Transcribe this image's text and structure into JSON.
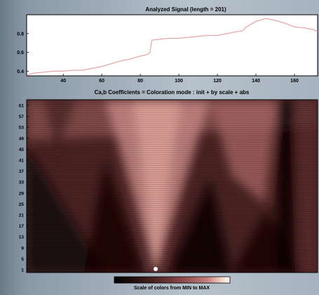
{
  "chart_data": [
    {
      "type": "line",
      "title": "Analyzed Signal  (length = 201)",
      "xlabel": "",
      "ylabel": "",
      "xlim": [
        21,
        172
      ],
      "ylim": [
        0.35,
        1.0
      ],
      "xticks": [
        40,
        60,
        80,
        100,
        120,
        140,
        160
      ],
      "yticks": [
        0.4,
        0.6,
        0.8
      ],
      "ytick_labels": [
        "0.4",
        "0.6",
        "0.8"
      ],
      "series": [
        {
          "color": "#e8a8a8",
          "x": [
            21,
            25,
            30,
            35,
            40,
            45,
            50,
            55,
            60,
            65,
            70,
            75,
            80,
            84,
            85,
            86,
            90,
            95,
            100,
            105,
            110,
            115,
            120,
            125,
            130,
            133,
            135,
            140,
            145,
            150,
            155,
            160,
            165,
            170,
            172
          ],
          "y": [
            0.36,
            0.38,
            0.39,
            0.4,
            0.4,
            0.41,
            0.41,
            0.43,
            0.45,
            0.48,
            0.51,
            0.53,
            0.56,
            0.58,
            0.6,
            0.73,
            0.74,
            0.75,
            0.75,
            0.76,
            0.77,
            0.78,
            0.78,
            0.8,
            0.82,
            0.83,
            0.87,
            0.93,
            0.96,
            0.94,
            0.91,
            0.87,
            0.86,
            0.84,
            0.82
          ]
        }
      ],
      "grid": false
    },
    {
      "type": "heatmap",
      "title": "Ca,b Coefficients  =  Coloration mode : init + by scale + abs",
      "yticks": [
        1,
        5,
        9,
        13,
        17,
        21,
        25,
        29,
        33,
        37,
        41,
        45,
        49,
        53,
        57,
        61
      ],
      "ytick_labels": [
        "1",
        "5",
        "9",
        "13",
        "17",
        "21",
        "25",
        "29",
        "33",
        "37",
        "41",
        "45",
        "49",
        "53",
        "57",
        "61"
      ],
      "colormap": [
        "#000000",
        "#2a1212",
        "#5a2a2a",
        "#8f4c4c",
        "#c47e7e",
        "#f1cfc0",
        "#ffffff"
      ]
    },
    {
      "type": "colorbar",
      "label": "Scale of colors from MIN to MAX",
      "colors": [
        "#000000",
        "#2a1212",
        "#5a2a2a",
        "#8f4c4c",
        "#c47e7e",
        "#f1cfc0",
        "#ffffff"
      ]
    }
  ]
}
